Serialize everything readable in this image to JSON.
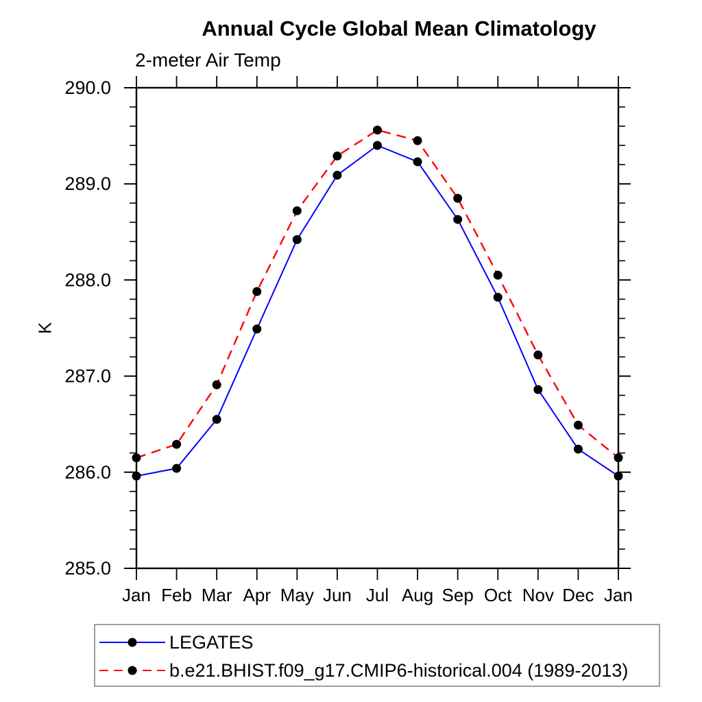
{
  "chart_data": {
    "type": "line",
    "title": "Annual Cycle Global Mean Climatology",
    "subtitle": "2-meter Air Temp",
    "ylabel": "K",
    "x_labels": [
      "Jan",
      "Feb",
      "Mar",
      "Apr",
      "May",
      "Jun",
      "Jul",
      "Aug",
      "Sep",
      "Oct",
      "Nov",
      "Dec",
      "Jan"
    ],
    "ylim": [
      285.0,
      290.0
    ],
    "ytick_interval": 1.0,
    "yminor_interval": 0.2,
    "ytick_labels": [
      "285.0",
      "286.0",
      "287.0",
      "288.0",
      "289.0",
      "290.0"
    ],
    "grid": false,
    "legend_position": "below-plot-left",
    "axis_color": "#000000",
    "marker_color": "#000000",
    "series": [
      {
        "name": "LEGATES",
        "color": "#0000ff",
        "line_style": "solid",
        "marker": "filled-circle",
        "values": [
          285.96,
          286.04,
          286.55,
          287.49,
          288.42,
          289.09,
          289.4,
          289.23,
          288.63,
          287.82,
          286.86,
          286.24,
          285.96
        ]
      },
      {
        "name": "b.e21.BHIST.f09_g17.CMIP6-historical.004 (1989-2013)",
        "color": "#ff0000",
        "line_style": "dashed",
        "marker": "filled-circle",
        "values": [
          286.15,
          286.29,
          286.91,
          287.88,
          288.72,
          289.29,
          289.56,
          289.45,
          288.85,
          288.05,
          287.22,
          286.49,
          286.15
        ]
      }
    ]
  }
}
